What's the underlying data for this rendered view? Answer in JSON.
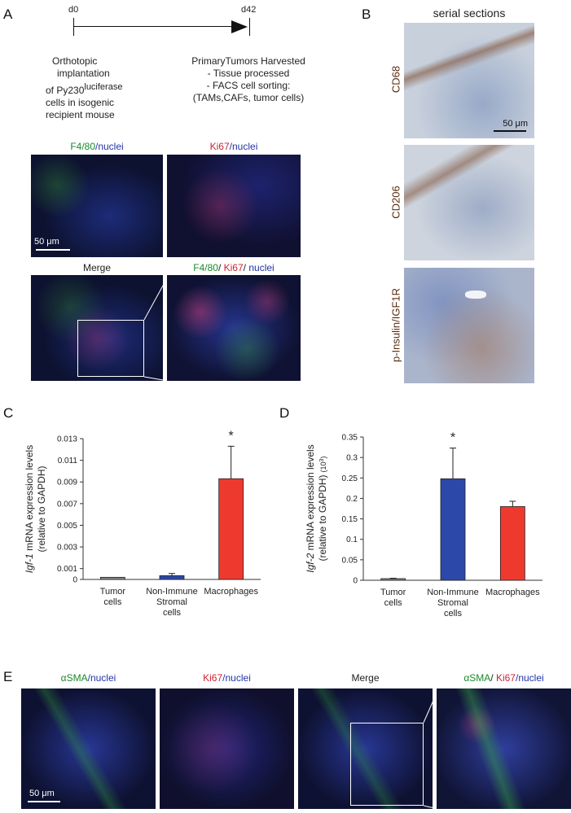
{
  "panels": {
    "A": {
      "label": "A",
      "timeline": {
        "start": "d0",
        "end": "d42"
      },
      "left_text": [
        "Orthotopic",
        "implantation",
        "of Py230",
        "luciferase",
        "cells in isogenic",
        "recipient mouse"
      ],
      "right_text": [
        "PrimaryTumors Harvested",
        "- Tissue processed",
        "- FACS cell sorting:",
        "(TAMs,CAFs, tumor cells)"
      ],
      "img1_title": {
        "a": "F4/80",
        "b": "/nuclei"
      },
      "img2_title": {
        "a": "Ki67",
        "b": "/nuclei"
      },
      "img3_title": "Merge",
      "img4_title": {
        "a": "F4/80",
        "sep1": "/ ",
        "b": "Ki67",
        "sep2": "/ ",
        "c": "nuclei"
      },
      "scale": "50 μm"
    },
    "B": {
      "label": "B",
      "title": "serial sections",
      "rows": [
        "CD68",
        "CD206",
        "p-Insulin/IGF1R"
      ],
      "scale": "50 μm"
    },
    "C": {
      "label": "C"
    },
    "D": {
      "label": "D"
    },
    "E": {
      "label": "E",
      "titles": [
        {
          "a": "αSMA",
          "b": "/nuclei"
        },
        {
          "a": "Ki67",
          "b": "/nuclei"
        },
        {
          "a": "Merge"
        },
        {
          "a": "αSMA",
          "sep": "/ ",
          "b": "Ki67",
          "c": "/nuclei"
        }
      ],
      "scale": "50 μm"
    }
  },
  "chart_data": [
    {
      "type": "bar",
      "ylabel_italic": "Igf-1",
      "ylabel": " mRNA expression levels",
      "ylabel2": "(relative to GAPDH)",
      "categories": [
        "Tumor cells",
        "Non-Immune Stromal cells",
        "Macrophages"
      ],
      "category_lines": [
        [
          "Tumor",
          "cells"
        ],
        [
          "Non-Immune",
          "Stromal",
          "cells"
        ],
        [
          "Macrophages"
        ]
      ],
      "values": [
        0.0002,
        0.00035,
        0.0093
      ],
      "errors": [
        0,
        0.0002,
        0.003
      ],
      "colors": [
        "#888888",
        "#2c48a8",
        "#ee3a2e"
      ],
      "ticks": [
        "0",
        "0.001",
        "0.003",
        "0.005",
        "0.007",
        "0.009",
        "0.011",
        "0.013"
      ],
      "tick_values": [
        0,
        0.001,
        0.003,
        0.005,
        0.007,
        0.009,
        0.011,
        0.013
      ],
      "ylim": [
        0,
        0.013
      ],
      "significance": "*",
      "significance_index": 2
    },
    {
      "type": "bar",
      "ylabel_italic": "Igf-2",
      "ylabel": " mRNA expression levels",
      "ylabel2": "(relative to GAPDH)",
      "ylabel_unit": "(10",
      "ylabel_unit_sup": "3",
      "ylabel_unit_end": ")",
      "categories": [
        "Tumor cells",
        "Non-Immune Stromal cells",
        "Macrophages"
      ],
      "category_lines": [
        [
          "Tumor",
          "cells"
        ],
        [
          "Non-Immune",
          "Stromal",
          "cells"
        ],
        [
          "Macrophages"
        ]
      ],
      "values": [
        0.004,
        0.248,
        0.18
      ],
      "errors": [
        0.001,
        0.075,
        0.013
      ],
      "colors": [
        "#888888",
        "#2c48a8",
        "#ee3a2e"
      ],
      "ticks": [
        "0",
        "0.05",
        "0.1",
        "0.15",
        "0.2",
        "0.25",
        "0.3",
        "0.35"
      ],
      "tick_values": [
        0,
        0.05,
        0.1,
        0.15,
        0.2,
        0.25,
        0.3,
        0.35
      ],
      "ylim": [
        0,
        0.35
      ],
      "significance": "*",
      "significance_index": 1
    }
  ]
}
